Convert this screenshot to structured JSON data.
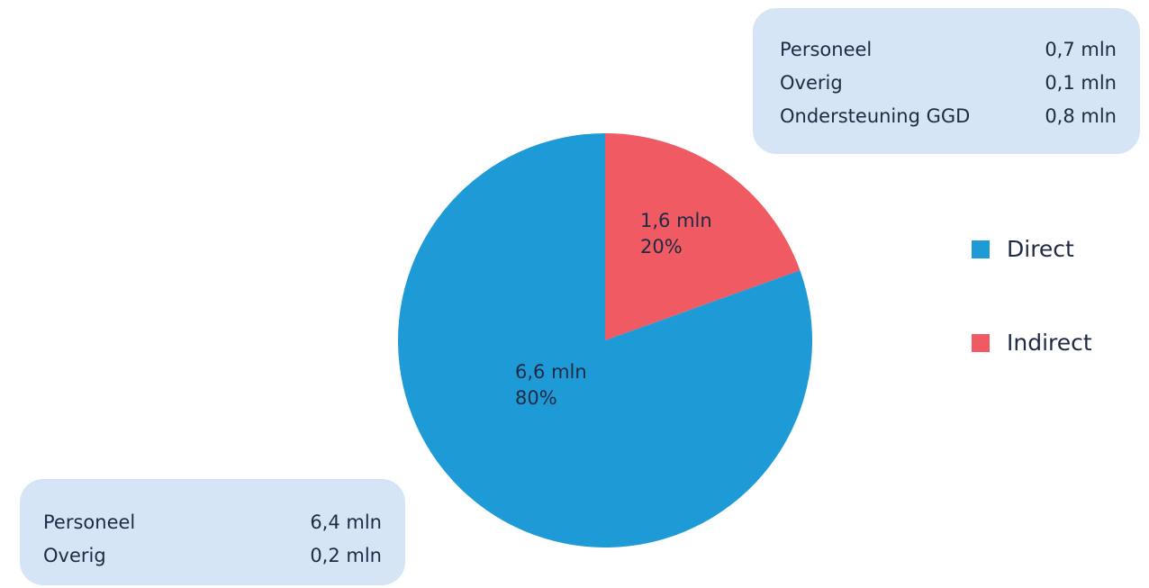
{
  "chart_data": {
    "type": "pie",
    "categories": [
      "Direct",
      "Indirect"
    ],
    "values": [
      6.6,
      1.6
    ],
    "percentages": [
      80,
      20
    ],
    "value_labels": [
      "6,6 mln",
      "1,6 mln"
    ],
    "percent_labels": [
      "80%",
      "20%"
    ],
    "colors": [
      "#1e9ad6",
      "#ef5a63"
    ],
    "legend_position": "right"
  },
  "legend": [
    {
      "label": "Direct",
      "color": "#1e9ad6"
    },
    {
      "label": "Indirect",
      "color": "#ef5a63"
    }
  ],
  "indirect_breakdown": [
    {
      "label": "Personeel",
      "value": "0,7 mln"
    },
    {
      "label": "Overig",
      "value": "0,1 mln"
    },
    {
      "label": "Ondersteuning GGD",
      "value": "0,8 mln"
    }
  ],
  "direct_breakdown": [
    {
      "label": "Personeel",
      "value": "6,4 mln"
    },
    {
      "label": "Overig",
      "value": "0,2 mln"
    }
  ]
}
